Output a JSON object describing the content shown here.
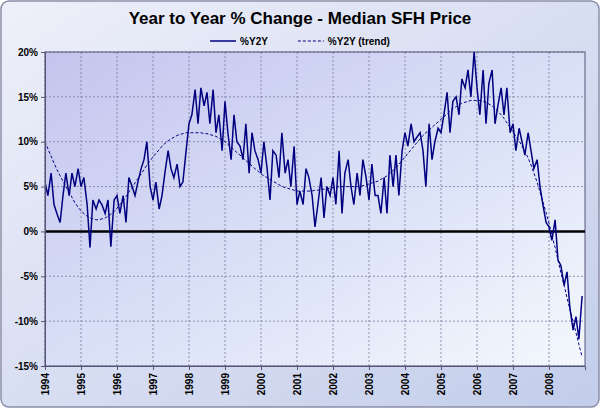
{
  "chart_data": {
    "type": "line",
    "title": "Year to Year % Change - Median SFH Price",
    "x": [
      1994.0,
      1994.08,
      1994.17,
      1994.25,
      1994.33,
      1994.42,
      1994.5,
      1994.58,
      1994.67,
      1994.75,
      1994.83,
      1994.92,
      1995.0,
      1995.08,
      1995.17,
      1995.25,
      1995.33,
      1995.42,
      1995.5,
      1995.58,
      1995.67,
      1995.75,
      1995.83,
      1995.92,
      1996.0,
      1996.08,
      1996.17,
      1996.25,
      1996.33,
      1996.42,
      1996.5,
      1996.58,
      1996.67,
      1996.75,
      1996.83,
      1996.92,
      1997.0,
      1997.08,
      1997.17,
      1997.25,
      1997.33,
      1997.42,
      1997.5,
      1997.58,
      1997.67,
      1997.75,
      1997.83,
      1997.92,
      1998.0,
      1998.08,
      1998.17,
      1998.25,
      1998.33,
      1998.42,
      1998.5,
      1998.58,
      1998.67,
      1998.75,
      1998.83,
      1998.92,
      1999.0,
      1999.08,
      1999.17,
      1999.25,
      1999.33,
      1999.42,
      1999.5,
      1999.58,
      1999.67,
      1999.75,
      1999.83,
      1999.92,
      2000.0,
      2000.08,
      2000.17,
      2000.25,
      2000.33,
      2000.42,
      2000.5,
      2000.58,
      2000.67,
      2000.75,
      2000.83,
      2000.92,
      2001.0,
      2001.08,
      2001.17,
      2001.25,
      2001.33,
      2001.42,
      2001.5,
      2001.58,
      2001.67,
      2001.75,
      2001.83,
      2001.92,
      2002.0,
      2002.08,
      2002.17,
      2002.25,
      2002.33,
      2002.42,
      2002.5,
      2002.58,
      2002.67,
      2002.75,
      2002.83,
      2002.92,
      2003.0,
      2003.08,
      2003.17,
      2003.25,
      2003.33,
      2003.42,
      2003.5,
      2003.58,
      2003.67,
      2003.75,
      2003.83,
      2003.92,
      2004.0,
      2004.08,
      2004.17,
      2004.25,
      2004.33,
      2004.42,
      2004.5,
      2004.58,
      2004.67,
      2004.75,
      2004.83,
      2004.92,
      2005.0,
      2005.08,
      2005.17,
      2005.25,
      2005.33,
      2005.42,
      2005.5,
      2005.58,
      2005.67,
      2005.75,
      2005.83,
      2005.92,
      2006.0,
      2006.08,
      2006.17,
      2006.25,
      2006.33,
      2006.42,
      2006.5,
      2006.58,
      2006.67,
      2006.75,
      2006.83,
      2006.92,
      2007.0,
      2007.08,
      2007.17,
      2007.25,
      2007.33,
      2007.42,
      2007.5,
      2007.58,
      2007.67,
      2007.75,
      2007.83,
      2007.92,
      2008.0,
      2008.08,
      2008.17,
      2008.25,
      2008.33,
      2008.42,
      2008.5,
      2008.58,
      2008.67,
      2008.75,
      2008.83,
      2008.92
    ],
    "series": [
      {
        "name": "%Y2Y",
        "color": "#000080",
        "line_style": "solid",
        "values": [
          5.5,
          4,
          6.5,
          3,
          2,
          1,
          4,
          6.5,
          4,
          6.5,
          5,
          7,
          5,
          6,
          3,
          -1.8,
          3.5,
          2.5,
          3.5,
          3,
          2,
          3.5,
          -1.7,
          3.5,
          4,
          2,
          4,
          1,
          6,
          5,
          4,
          5.5,
          7,
          8,
          10,
          5,
          3.5,
          5.5,
          2.5,
          4,
          6.5,
          9,
          7,
          6,
          7.5,
          5,
          5.5,
          9,
          12,
          13,
          15.8,
          12,
          16,
          14,
          15.5,
          12,
          15.8,
          11,
          13,
          9,
          14.5,
          11,
          8,
          13,
          10,
          9.5,
          8,
          12,
          6.5,
          11,
          9,
          8,
          6.5,
          10,
          7,
          3.5,
          9,
          8.5,
          6,
          11,
          6.5,
          8,
          5,
          9.5,
          3,
          4.5,
          3,
          7,
          6,
          4,
          0.5,
          3,
          6,
          1.5,
          5,
          4,
          6,
          3,
          9,
          2,
          6.5,
          8,
          5,
          3,
          6.5,
          4,
          8,
          6,
          3.5,
          7.5,
          4,
          4,
          2,
          6,
          2,
          8.5,
          5,
          8.5,
          4,
          9,
          11,
          9.5,
          12,
          10,
          10.5,
          11,
          9,
          5,
          12,
          8,
          10,
          11.5,
          11,
          13,
          15.5,
          11,
          14.5,
          15,
          13,
          17,
          16,
          18,
          15,
          20,
          16,
          13,
          18,
          12,
          16.5,
          18,
          12,
          14,
          16,
          13,
          16,
          11,
          12,
          9,
          11.5,
          10,
          8.5,
          11,
          9,
          7,
          8,
          5,
          3,
          1,
          0.5,
          -1,
          1.3,
          -3.2,
          -3.8,
          -6,
          -4.5,
          -8.5,
          -11,
          -9.5,
          -12,
          -7.2
        ]
      },
      {
        "name": "%Y2Y (trend)",
        "color": "#000080",
        "line_style": "dashed",
        "values": [
          10,
          9.2,
          8.4,
          7.6,
          6.9,
          6.2,
          5.6,
          5.0,
          4.4,
          3.8,
          3.2,
          2.7,
          2.3,
          2.0,
          1.7,
          1.5,
          1.4,
          1.3,
          1.3,
          1.4,
          1.5,
          1.7,
          1.9,
          2.2,
          2.6,
          3.0,
          3.4,
          3.9,
          4.4,
          4.9,
          5.4,
          5.9,
          6.4,
          6.9,
          7.4,
          7.9,
          8.3,
          8.7,
          9.1,
          9.5,
          9.8,
          10.1,
          10.3,
          10.5,
          10.7,
          10.8,
          10.9,
          11.0,
          11.0,
          11.0,
          11.0,
          11.0,
          11.0,
          10.9,
          10.9,
          10.8,
          10.7,
          10.6,
          10.4,
          10.2,
          10.0,
          9.7,
          9.4,
          9.1,
          8.8,
          8.5,
          8.2,
          7.9,
          7.6,
          7.3,
          7.0,
          6.7,
          6.4,
          6.2,
          6.0,
          5.8,
          5.6,
          5.4,
          5.2,
          5.0,
          4.9,
          4.8,
          4.7,
          4.6,
          4.5,
          4.5,
          4.5,
          4.5,
          4.5,
          4.5,
          4.6,
          4.6,
          4.7,
          4.7,
          4.8,
          4.8,
          4.9,
          4.9,
          5.0,
          5.0,
          5.0,
          5.0,
          5.0,
          5.0,
          5.0,
          5.0,
          5.1,
          5.2,
          5.3,
          5.4,
          5.5,
          5.6,
          5.8,
          6.0,
          6.2,
          6.5,
          6.8,
          7.1,
          7.5,
          7.9,
          8.3,
          8.7,
          9.1,
          9.5,
          9.9,
          10.3,
          10.7,
          11.0,
          11.3,
          11.6,
          11.9,
          12.2,
          12.5,
          12.8,
          13.1,
          13.4,
          13.7,
          13.9,
          14.1,
          14.3,
          14.4,
          14.5,
          14.6,
          14.6,
          14.6,
          14.6,
          14.5,
          14.4,
          14.2,
          14.0,
          13.7,
          13.4,
          13.0,
          12.6,
          12.1,
          11.6,
          11.1,
          10.6,
          10.1,
          9.5,
          8.9,
          8.2,
          7.4,
          6.5,
          5.5,
          4.4,
          3.3,
          2.1,
          0.9,
          -0.4,
          -1.8,
          -3.2,
          -4.6,
          -6.0,
          -7.4,
          -8.7,
          -10.0,
          -11.3,
          -12.6,
          -14.0
        ]
      }
    ],
    "xlim": [
      1994,
      2009
    ],
    "xticks": [
      1994,
      1995,
      1996,
      1997,
      1998,
      1999,
      2000,
      2001,
      2002,
      2003,
      2004,
      2005,
      2006,
      2007,
      2008
    ],
    "ylim": [
      -15,
      20
    ],
    "yticks": [
      {
        "value": -15,
        "label": "-15%"
      },
      {
        "value": -10,
        "label": "-10%"
      },
      {
        "value": -5,
        "label": "-5%"
      },
      {
        "value": 0,
        "label": "0%"
      },
      {
        "value": 5,
        "label": "5%"
      },
      {
        "value": 10,
        "label": "10%"
      },
      {
        "value": 15,
        "label": "15%"
      },
      {
        "value": 20,
        "label": "20%"
      }
    ],
    "grid": true,
    "legend": "top"
  }
}
